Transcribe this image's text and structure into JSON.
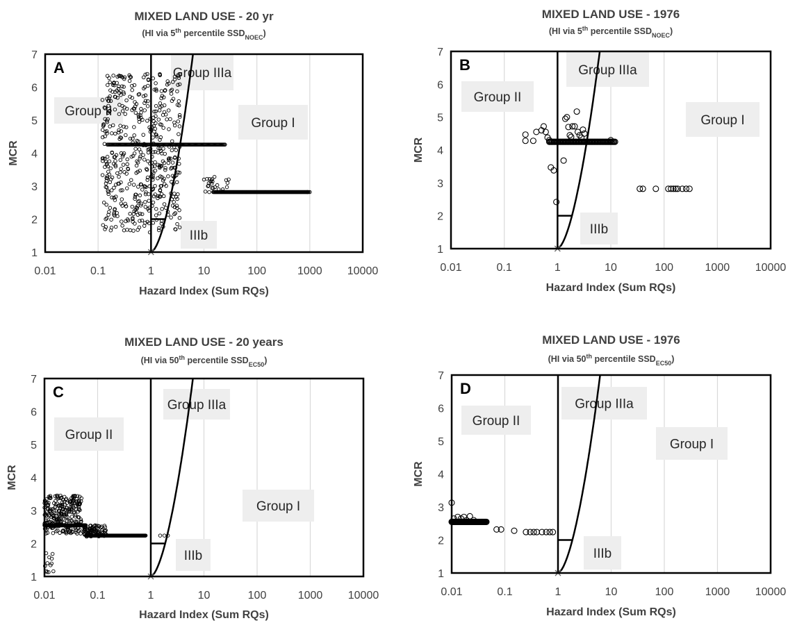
{
  "colors": {
    "text": "#404040",
    "axis": "#000000",
    "grid": "#d9d9d9",
    "box": "#eeeeee",
    "marker": "#000000"
  },
  "chart_data": [
    {
      "panel_label": "A",
      "type": "scatter",
      "title": "MIXED LAND USE - 20 yr",
      "subtitle": {
        "pre": "(HI via 5",
        "sup": "th",
        "mid": " percentile SSD",
        "sub": "NOEC",
        "post": ")"
      },
      "xlabel": "Hazard Index (Sum RQs)",
      "ylabel": "MCR",
      "x_scale": "log",
      "xlim": [
        0.01,
        10000
      ],
      "ylim": [
        1,
        7
      ],
      "x_ticks": [
        "0.01",
        "0.1",
        "1",
        "10",
        "100",
        "1000",
        "10000"
      ],
      "y_ticks": [
        "1",
        "2",
        "3",
        "4",
        "5",
        "6",
        "7"
      ],
      "grid": "vertical",
      "marker_size": "small",
      "group_labels": [
        "Group II",
        "Group IIIa",
        "Group I",
        "IIIb"
      ],
      "groups_at": [
        [
          0.3,
          5.0
        ],
        [
          3.0,
          6.3
        ],
        [
          35,
          4.8
        ],
        [
          2.8,
          1.5
        ]
      ],
      "dense_lines": [
        {
          "x_from": 0.15,
          "x_to": 25,
          "y": 4.26
        },
        {
          "x_from": 15,
          "x_to": 950,
          "y": 2.82
        }
      ],
      "scatter_clouds": [
        {
          "x_from": 0.12,
          "x_to": 3.5,
          "y_from": 1.65,
          "y_to": 6.4,
          "n": 520
        },
        {
          "x_from": 10,
          "x_to": 30,
          "y_from": 2.8,
          "y_to": 3.3,
          "n": 25
        }
      ],
      "scatter": [
        [
          0.25,
          6.35
        ],
        [
          0.85,
          6.4
        ],
        [
          0.3,
          3.65
        ],
        [
          0.45,
          2.0
        ],
        [
          0.6,
          1.75
        ],
        [
          900,
          2.82
        ],
        [
          1000,
          2.82
        ],
        [
          0.95,
          1.6
        ]
      ]
    },
    {
      "panel_label": "B",
      "type": "scatter",
      "title": "MIXED LAND USE - 1976",
      "subtitle": {
        "pre": "(HI via 5",
        "sup": "th",
        "mid": " percentile SSD",
        "sub": "NOEC",
        "post": ")"
      },
      "xlabel": "Hazard Index (Sum RQs)",
      "ylabel": "MCR",
      "x_scale": "log",
      "xlim": [
        0.01,
        10000
      ],
      "ylim": [
        1,
        7
      ],
      "x_ticks": [
        "0.01",
        "0.1",
        "1",
        "10",
        "100",
        "1000",
        "10000"
      ],
      "y_ticks": [
        "1",
        "2",
        "3",
        "4",
        "5",
        "6",
        "7"
      ],
      "grid": "vertical",
      "marker_size": "large",
      "group_labels": [
        "Group II",
        "Group IIIa",
        "Group I",
        "IIIb"
      ],
      "groups_at": [
        [
          0.22,
          6.0
        ],
        [
          4.0,
          6.5
        ],
        [
          700,
          4.8
        ],
        [
          2.8,
          1.65
        ]
      ],
      "dense_lines": [
        {
          "x_from": 0.7,
          "x_to": 12,
          "y": 4.25
        }
      ],
      "scatter_clouds": [],
      "scatter": [
        [
          0.25,
          4.47
        ],
        [
          0.25,
          4.28
        ],
        [
          0.35,
          4.28
        ],
        [
          0.4,
          4.55
        ],
        [
          0.5,
          4.6
        ],
        [
          0.55,
          4.72
        ],
        [
          0.6,
          4.55
        ],
        [
          0.65,
          4.38
        ],
        [
          0.7,
          4.3
        ],
        [
          0.75,
          3.47
        ],
        [
          0.85,
          3.38
        ],
        [
          0.95,
          2.42
        ],
        [
          1.3,
          3.68
        ],
        [
          1.4,
          4.95
        ],
        [
          1.5,
          5.0
        ],
        [
          1.6,
          4.7
        ],
        [
          1.7,
          4.45
        ],
        [
          1.9,
          4.72
        ],
        [
          2.1,
          4.72
        ],
        [
          2.3,
          5.17
        ],
        [
          2.4,
          4.55
        ],
        [
          2.6,
          4.45
        ],
        [
          2.8,
          4.38
        ],
        [
          3.0,
          4.62
        ],
        [
          3.2,
          4.5
        ],
        [
          1.8,
          4.4
        ],
        [
          10,
          4.3
        ],
        [
          35,
          2.82
        ],
        [
          40,
          2.82
        ],
        [
          70,
          2.82
        ],
        [
          120,
          2.82
        ],
        [
          135,
          2.82
        ],
        [
          150,
          2.82
        ],
        [
          165,
          2.82
        ],
        [
          180,
          2.82
        ],
        [
          220,
          2.82
        ],
        [
          260,
          2.82
        ],
        [
          300,
          2.82
        ]
      ]
    },
    {
      "panel_label": "C",
      "type": "scatter",
      "title": "MIXED LAND USE - 20 years",
      "subtitle": {
        "pre": "(HI via 50",
        "sup": "th",
        "mid": " percentile SSD",
        "sub": "EC50",
        "post": ")"
      },
      "xlabel": "Hazard Index (Sum RQs)",
      "ylabel": "MCR",
      "x_scale": "log",
      "xlim": [
        0.01,
        10000
      ],
      "ylim": [
        1,
        7
      ],
      "x_ticks": [
        "0.01",
        "0.1",
        "1",
        "10",
        "100",
        "1000",
        "10000"
      ],
      "y_ticks": [
        "1",
        "2",
        "3",
        "4",
        "5",
        "6",
        "7"
      ],
      "grid": "vertical",
      "marker_size": "small",
      "group_labels": [
        "Group II",
        "Group IIIa",
        "Group I",
        "IIIb"
      ],
      "groups_at": [
        [
          0.022,
          5.85
        ],
        [
          3.5,
          6.3
        ],
        [
          250,
          3.1
        ],
        [
          2.8,
          1.75
        ]
      ],
      "dense_lines": [
        {
          "x_from": 0.01,
          "x_to": 0.06,
          "y": 2.55
        },
        {
          "x_from": 0.06,
          "x_to": 0.8,
          "y": 2.24
        }
      ],
      "scatter_clouds": [
        {
          "x_from": 0.01,
          "x_to": 0.05,
          "y_from": 2.3,
          "y_to": 3.45,
          "n": 260
        },
        {
          "x_from": 0.05,
          "x_to": 0.15,
          "y_from": 2.2,
          "y_to": 2.55,
          "n": 90
        },
        {
          "x_from": 0.01,
          "x_to": 0.015,
          "y_from": 1.1,
          "y_to": 1.8,
          "n": 12
        }
      ],
      "scatter": [
        [
          0.03,
          3.3
        ],
        [
          0.045,
          3.28
        ],
        [
          0.02,
          3.45
        ],
        [
          1.5,
          2.24
        ],
        [
          1.8,
          2.24
        ],
        [
          2.1,
          2.24
        ]
      ]
    },
    {
      "panel_label": "D",
      "type": "scatter",
      "title": "MIXED LAND USE - 1976",
      "subtitle": {
        "pre": "(HI via 50",
        "sup": "th",
        "mid": " percentile SSD",
        "sub": "EC50",
        "post": ")"
      },
      "xlabel": "Hazard Index (Sum RQs)",
      "ylabel": "MCR",
      "x_scale": "log",
      "xlim": [
        0.01,
        10000
      ],
      "ylim": [
        1,
        7
      ],
      "x_ticks": [
        "0.01",
        "0.1",
        "1",
        "10",
        "100",
        "1000",
        "10000"
      ],
      "y_ticks": [
        "1",
        "2",
        "3",
        "4",
        "5",
        "6",
        "7"
      ],
      "grid": "vertical",
      "marker_size": "large",
      "group_labels": [
        "Group II",
        "Group IIIa",
        "Group I",
        "IIIb"
      ],
      "groups_at": [
        [
          0.22,
          6.0
        ],
        [
          4.0,
          6.2
        ],
        [
          150,
          4.95
        ],
        [
          2.8,
          1.65
        ]
      ],
      "dense_lines": [
        {
          "x_from": 0.01,
          "x_to": 0.045,
          "y": 2.55
        }
      ],
      "scatter_clouds": [],
      "scatter": [
        [
          0.01,
          3.13
        ],
        [
          0.011,
          2.65
        ],
        [
          0.013,
          2.7
        ],
        [
          0.015,
          2.65
        ],
        [
          0.017,
          2.7
        ],
        [
          0.019,
          2.6
        ],
        [
          0.022,
          2.72
        ],
        [
          0.026,
          2.6
        ],
        [
          0.07,
          2.32
        ],
        [
          0.085,
          2.32
        ],
        [
          0.15,
          2.28
        ],
        [
          0.25,
          2.24
        ],
        [
          0.3,
          2.24
        ],
        [
          0.35,
          2.24
        ],
        [
          0.4,
          2.24
        ],
        [
          0.5,
          2.24
        ],
        [
          0.6,
          2.24
        ],
        [
          0.7,
          2.24
        ],
        [
          0.8,
          2.24
        ]
      ]
    }
  ]
}
